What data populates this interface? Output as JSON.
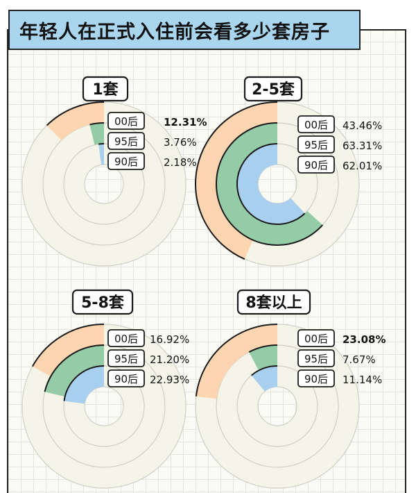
{
  "title": "年轻人在正式入住前会看多少套房子",
  "colors": {
    "00后": "#fdd5b1",
    "95后": "#94cca7",
    "90后": "#a8cfee",
    "track": "#f4f4e8",
    "ring_outline": "#cfcfc6",
    "stroke": "#1a1a1a"
  },
  "chart_data": [
    {
      "type": "pie",
      "title": "1套",
      "categories": [
        "00后",
        "95后",
        "90后"
      ],
      "values": [
        12.31,
        3.76,
        2.18
      ],
      "labels": [
        "12.31%",
        "3.76%",
        "2.18%"
      ],
      "highlight": "00后"
    },
    {
      "type": "pie",
      "title": "2-5套",
      "categories": [
        "00后",
        "95后",
        "90后"
      ],
      "values": [
        43.46,
        63.31,
        62.01
      ],
      "labels": [
        "43.46%",
        "63.31%",
        "62.01%"
      ],
      "highlight": null
    },
    {
      "type": "pie",
      "title": "5-8套",
      "categories": [
        "00后",
        "95后",
        "90后"
      ],
      "values": [
        16.92,
        21.2,
        22.93
      ],
      "labels": [
        "16.92%",
        "21.20%",
        "22.93%"
      ],
      "highlight": null
    },
    {
      "type": "pie",
      "title": "8套以上",
      "categories": [
        "00后",
        "95后",
        "90后"
      ],
      "values": [
        23.08,
        7.67,
        11.14
      ],
      "labels": [
        "23.08%",
        "7.67%",
        "11.14%"
      ],
      "highlight": "00后"
    }
  ]
}
